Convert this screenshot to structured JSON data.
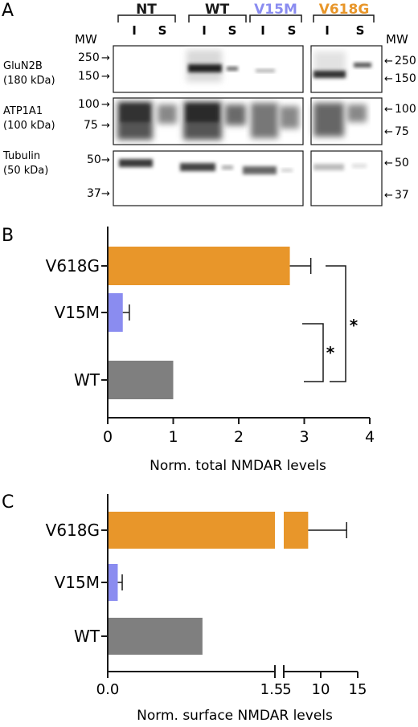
{
  "panelA": {
    "letter": "A",
    "groups": [
      {
        "label": "NT",
        "color": "#1a1a1a"
      },
      {
        "label": "WT",
        "color": "#1a1a1a"
      },
      {
        "label": "V15M",
        "color": "#8a8cf0"
      },
      {
        "label": "V618G",
        "color": "#e8962a"
      }
    ],
    "lane_labels": [
      "I",
      "S",
      "I",
      "S",
      "I",
      "S",
      "I",
      "S"
    ],
    "mw_header": "MW",
    "blots": [
      {
        "name": "GluN2B",
        "size": "(180 kDa)",
        "left_markers": [
          "250",
          "150"
        ],
        "right_markers": [
          "250",
          "150"
        ]
      },
      {
        "name": "ATP1A1",
        "size": "(100 kDa)",
        "left_markers": [
          "100",
          "75"
        ],
        "right_markers": [
          "100",
          "75"
        ]
      },
      {
        "name": "Tubulin",
        "size": "(50 kDa)",
        "left_markers": [
          "50",
          "37"
        ],
        "right_markers": [
          "50",
          "37"
        ]
      }
    ],
    "arrow": "→",
    "arrow_left": "←"
  },
  "panelB": {
    "letter": "B",
    "significance": [
      "*",
      "*"
    ]
  },
  "panelC": {
    "letter": "C"
  },
  "chart_data": [
    {
      "type": "bar",
      "orientation": "horizontal",
      "categories": [
        "V618G",
        "V15M",
        "WT"
      ],
      "values": [
        2.78,
        0.23,
        1.0
      ],
      "errors": [
        0.32,
        0.1,
        0
      ],
      "colors": [
        "#e8962a",
        "#8a8cf0",
        "#7f7f7f"
      ],
      "xlabel": "Norm. total NMDAR levels",
      "xlim": [
        0,
        4
      ],
      "xticks": [
        "0",
        "1",
        "2",
        "3",
        "4"
      ],
      "significance": "V618G vs WT: *; V15M vs WT: *"
    },
    {
      "type": "bar",
      "orientation": "horizontal",
      "categories": [
        "V618G",
        "V15M",
        "WT"
      ],
      "values": [
        8.3,
        0.09,
        0.85
      ],
      "errors": [
        5.2,
        0.04,
        0
      ],
      "colors": [
        "#e8962a",
        "#8a8cf0",
        "#7f7f7f"
      ],
      "xlabel": "Norm. surface NMDAR levels",
      "axis_break": "between 1.5 and 5",
      "xticks": [
        "0.0",
        "1.5",
        "5",
        "10",
        "15"
      ]
    }
  ]
}
